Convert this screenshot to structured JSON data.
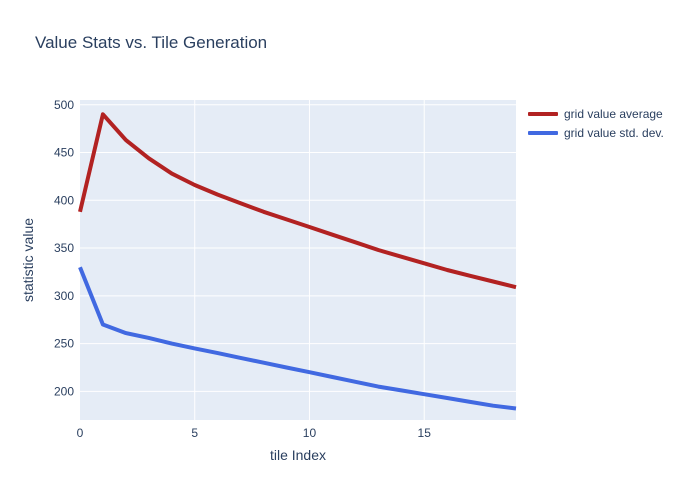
{
  "chart_data": {
    "type": "line",
    "title": "Value Stats vs. Tile Generation",
    "xlabel": "tile Index",
    "ylabel": "statistic value",
    "xlim": [
      0,
      19
    ],
    "ylim": [
      170,
      505
    ],
    "x_ticks": [
      0,
      5,
      10,
      15
    ],
    "y_ticks": [
      200,
      250,
      300,
      350,
      400,
      450,
      500
    ],
    "grid": true,
    "legend_position": "top-right outside",
    "background_color": "#e5ecf6",
    "x": [
      0,
      1,
      2,
      3,
      4,
      5,
      6,
      7,
      8,
      9,
      10,
      11,
      12,
      13,
      14,
      15,
      16,
      17,
      18,
      19
    ],
    "series": [
      {
        "name": "grid value average",
        "color": "#b22222",
        "values": [
          388,
          490,
          463,
          444,
          428,
          416,
          406,
          397,
          388,
          380,
          372,
          364,
          356,
          348,
          341,
          334,
          327,
          321,
          315,
          309
        ]
      },
      {
        "name": "grid value std. dev.",
        "color": "#4169e1",
        "values": [
          330,
          270,
          261,
          256,
          250,
          245,
          240,
          235,
          230,
          225,
          220,
          215,
          210,
          205,
          201,
          197,
          193,
          189,
          185,
          182
        ]
      }
    ]
  }
}
